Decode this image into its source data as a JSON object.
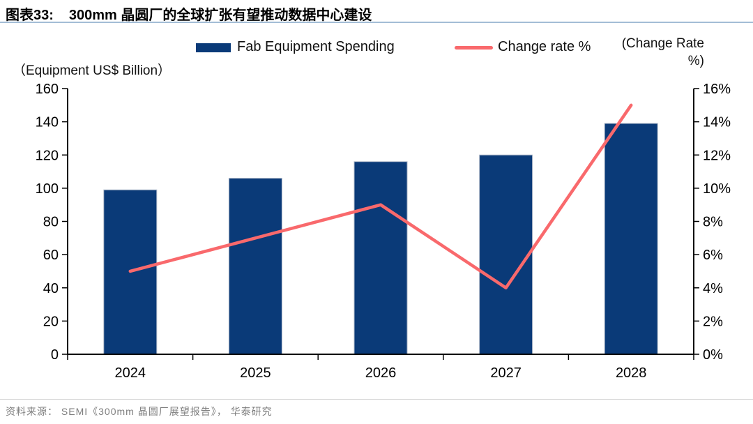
{
  "header": {
    "figure_label": "图表33:",
    "title": "300mm 晶圆厂的全球扩张有望推动数据中心建设"
  },
  "legend": {
    "bar_label": "Fab Equipment Spending",
    "line_label": "Change rate %"
  },
  "axis_titles": {
    "left": "（Equipment  US$ Billion）",
    "right_lines": [
      "(Change Rate",
      "%)"
    ]
  },
  "footer": {
    "source": "资料来源： SEMI《300mm 晶圆厂展望报告》， 华泰研究"
  },
  "colors": {
    "bar": "#0A3A78",
    "bar_edge": "#AEB8C8",
    "line": "#F9696C",
    "axis": "#000000",
    "title_underline": "#A3BDD6",
    "source_text": "#7E7E7E"
  },
  "chart_data": {
    "type": "bar",
    "subtype": "bar+line combo",
    "categories": [
      "2024",
      "2025",
      "2026",
      "2027",
      "2028"
    ],
    "series": [
      {
        "name": "Fab Equipment Spending",
        "type": "bar",
        "axis": "left",
        "values": [
          99,
          106,
          116,
          120,
          139
        ]
      },
      {
        "name": "Change rate %",
        "type": "line",
        "axis": "right",
        "values": [
          5,
          7,
          9,
          4,
          15
        ]
      }
    ],
    "title": "300mm 晶圆厂的全球扩张有望推动数据中心建设",
    "xlabel": "",
    "ylabel_left": "（Equipment US$ Billion）",
    "ylabel_right": "(Change Rate %)",
    "left_axis": {
      "min": 0,
      "max": 160,
      "step": 20
    },
    "right_axis": {
      "min": 0,
      "max": 16,
      "step": 2,
      "suffix": "%"
    },
    "grid": false,
    "legend_position": "top"
  }
}
